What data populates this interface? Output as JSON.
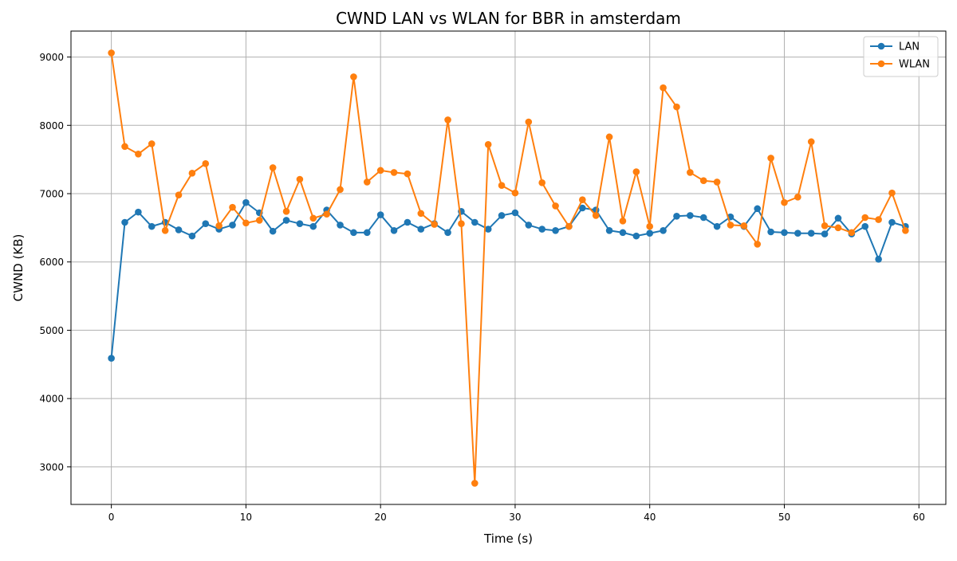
{
  "chart_data": {
    "type": "line",
    "title": "CWND LAN vs WLAN for BBR in amsterdam",
    "xlabel": "Time (s)",
    "ylabel": "CWND (KB)",
    "xlim": [
      -3,
      62
    ],
    "ylim": [
      2450,
      9380
    ],
    "xticks": [
      0,
      10,
      20,
      30,
      40,
      50,
      60
    ],
    "yticks": [
      3000,
      4000,
      5000,
      6000,
      7000,
      8000,
      9000
    ],
    "grid": true,
    "legend_position": "top-right",
    "x": [
      0,
      1,
      2,
      3,
      4,
      5,
      6,
      7,
      8,
      9,
      10,
      11,
      12,
      13,
      14,
      15,
      16,
      17,
      18,
      19,
      20,
      21,
      22,
      23,
      24,
      25,
      26,
      27,
      28,
      29,
      30,
      31,
      32,
      33,
      34,
      35,
      36,
      37,
      38,
      39,
      40,
      41,
      42,
      43,
      44,
      45,
      46,
      47,
      48,
      49,
      50,
      51,
      52,
      53,
      54,
      55,
      56,
      57,
      58,
      59
    ],
    "series": [
      {
        "name": "LAN",
        "color": "#1f77b4",
        "values": [
          4590,
          6580,
          6730,
          6520,
          6580,
          6470,
          6380,
          6560,
          6480,
          6540,
          6870,
          6720,
          6450,
          6610,
          6560,
          6520,
          6760,
          6540,
          6430,
          6430,
          6690,
          6460,
          6580,
          6480,
          6560,
          6430,
          6740,
          6580,
          6480,
          6680,
          6720,
          6540,
          6480,
          6460,
          6520,
          6790,
          6760,
          6460,
          6430,
          6380,
          6420,
          6460,
          6670,
          6680,
          6650,
          6520,
          6660,
          6520,
          6780,
          6440,
          6430,
          6420,
          6420,
          6410,
          6640,
          6410,
          6520,
          6040,
          6580,
          6520
        ]
      },
      {
        "name": "WLAN",
        "color": "#ff7f0e",
        "values": [
          9060,
          7690,
          7580,
          7730,
          6460,
          6980,
          7300,
          7440,
          6530,
          6800,
          6570,
          6610,
          7380,
          6740,
          7210,
          6640,
          6700,
          7060,
          8710,
          7170,
          7340,
          7310,
          7290,
          6710,
          6550,
          8080,
          6560,
          2760,
          7720,
          7120,
          7010,
          8050,
          7160,
          6820,
          6520,
          6910,
          6680,
          7830,
          6600,
          7320,
          6520,
          8550,
          8270,
          7310,
          7190,
          7170,
          6540,
          6530,
          6260,
          7520,
          6870,
          6950,
          7760,
          6530,
          6500,
          6430,
          6650,
          6620,
          7010,
          6460
        ]
      }
    ]
  }
}
